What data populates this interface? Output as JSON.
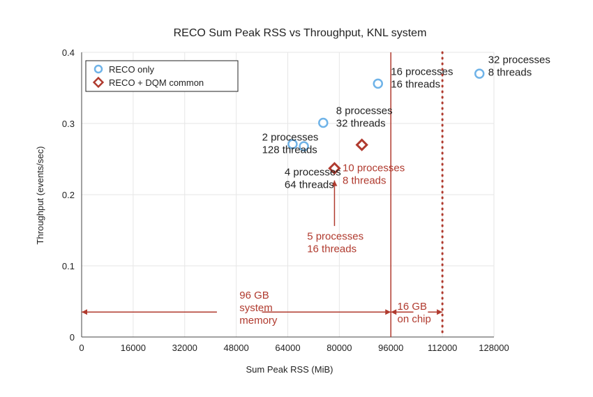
{
  "chart_data": {
    "type": "scatter",
    "title": "RECO Sum Peak RSS vs Throughput,  KNL system",
    "xlabel": "Sum Peak RSS (MiB)",
    "ylabel": "Throughput (events/sec)",
    "xlim": [
      0,
      128000
    ],
    "ylim": [
      0,
      0.4
    ],
    "x_ticks": [
      "0",
      "16000",
      "32000",
      "48000",
      "64000",
      "80000",
      "96000",
      "112000",
      "128000"
    ],
    "y_ticks": [
      "0",
      "0.1",
      "0.2",
      "0.3",
      "0.4"
    ],
    "grid": true,
    "legend_position": "top-left",
    "series": [
      {
        "name": "RECO only",
        "marker": "circle",
        "color": "#6fb3e8",
        "points": [
          {
            "x": 65500,
            "y": 0.271
          },
          {
            "x": 69000,
            "y": 0.268
          },
          {
            "x": 75000,
            "y": 0.301
          },
          {
            "x": 92000,
            "y": 0.356
          },
          {
            "x": 123500,
            "y": 0.37
          }
        ]
      },
      {
        "name": "RECO + DQM common",
        "marker": "diamond",
        "color": "#b03a2e",
        "points": [
          {
            "x": 78500,
            "y": 0.237
          },
          {
            "x": 87000,
            "y": 0.27
          }
        ]
      }
    ],
    "reference_lines": [
      {
        "x": 96000,
        "style": "solid",
        "color": "#b03a2e"
      },
      {
        "x": 112000,
        "style": "dotted",
        "color": "#b03a2e"
      }
    ],
    "annotations": [
      {
        "lines": [
          "2 processes",
          "128 threads"
        ],
        "x": 56000,
        "y": 0.276,
        "color": "#222222"
      },
      {
        "lines": [
          "8 processes",
          "32 threads"
        ],
        "x": 79000,
        "y": 0.313,
        "color": "#222222"
      },
      {
        "lines": [
          "16 processes",
          "16 threads"
        ],
        "x": 96000,
        "y": 0.368,
        "color": "#222222"
      },
      {
        "lines": [
          "32 processes",
          "8 threads"
        ],
        "x": 126200,
        "y": 0.385,
        "color": "#222222"
      },
      {
        "lines": [
          "4 processes",
          "64 threads"
        ],
        "x": 63000,
        "y": 0.227,
        "color": "#222222"
      },
      {
        "lines": [
          "10 processes",
          "8 threads"
        ],
        "x": 81000,
        "y": 0.233,
        "color": "#b03a2e"
      },
      {
        "lines": [
          "5 processes",
          "16 threads"
        ],
        "x": 70000,
        "y": 0.137,
        "color": "#b03a2e"
      },
      {
        "lines": [
          "96 GB",
          "system",
          "memory"
        ],
        "x": 49000,
        "y": 0.054,
        "color": "#b03a2e"
      },
      {
        "lines": [
          "16 GB",
          "on chip"
        ],
        "x": 98000,
        "y": 0.038,
        "color": "#b03a2e"
      }
    ]
  }
}
